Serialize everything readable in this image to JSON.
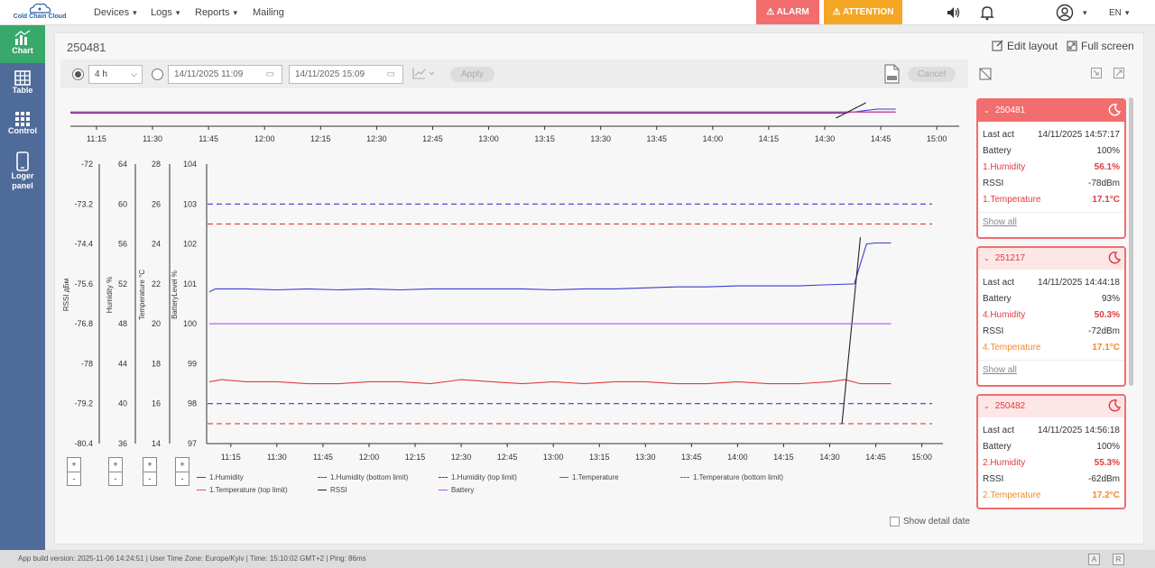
{
  "app": {
    "logo_text": "Cold Chain Cloud"
  },
  "nav": [
    {
      "label": "Devices",
      "dropdown": true
    },
    {
      "label": "Logs",
      "dropdown": true
    },
    {
      "label": "Reports",
      "dropdown": true
    },
    {
      "label": "Mailing",
      "dropdown": false
    }
  ],
  "alerts": {
    "alarm": "ALARM",
    "attention": "ATTENTION"
  },
  "lang": "EN",
  "sidebar": [
    {
      "label": "Chart",
      "icon": "chart-icon",
      "active": true
    },
    {
      "label": "Table",
      "icon": "table-icon",
      "active": false
    },
    {
      "label": "Control",
      "icon": "grid-icon",
      "active": false
    },
    {
      "label": "Loger panel",
      "icon": "phone-icon",
      "active": false
    }
  ],
  "panel": {
    "title": "250481",
    "edit_layout": "Edit layout",
    "full_screen": "Full screen"
  },
  "toolbar": {
    "period": "4 h",
    "date_from": "14/11/2025 11:09",
    "date_to": "14/11/2025 15:09",
    "apply": "Apply",
    "cancel": "Cancel"
  },
  "chart_data": {
    "type": "line",
    "x_ticks_overview": [
      "11:15",
      "11:30",
      "11:45",
      "12:00",
      "12:15",
      "12:30",
      "12:45",
      "13:00",
      "13:15",
      "13:30",
      "13:45",
      "14:00",
      "14:15",
      "14:30",
      "14:45",
      "15:00"
    ],
    "x_ticks_main": [
      "11:15",
      "11:30",
      "11:45",
      "12:00",
      "12:15",
      "12:30",
      "12:45",
      "13:00",
      "13:15",
      "13:30",
      "13:45",
      "14:00",
      "14:15",
      "14:30",
      "14:45",
      "15:00"
    ],
    "x_start_minutes": 668,
    "x_end_minutes": 906,
    "axes": [
      {
        "label": "RSSI дБм",
        "ticks": [
          "-72",
          "-73.2",
          "-74.4",
          "-75.6",
          "-76.8",
          "-78",
          "-79.2",
          "-80.4"
        ],
        "range": [
          -80.4,
          -72
        ]
      },
      {
        "label": "Humidity %",
        "ticks": [
          "64",
          "60",
          "56",
          "52",
          "48",
          "44",
          "40",
          "36"
        ],
        "range": [
          36,
          64
        ]
      },
      {
        "label": "Temperature °C",
        "ticks": [
          "28",
          "26",
          "24",
          "22",
          "20",
          "18",
          "16",
          "14"
        ],
        "range": [
          14,
          28
        ]
      },
      {
        "label": "BatteryLevel %",
        "ticks": [
          "104",
          "103",
          "102",
          "101",
          "100",
          "99",
          "98",
          "97"
        ],
        "range": [
          97,
          104
        ]
      }
    ],
    "series": [
      {
        "name": "1.Humidity",
        "color": "#3a3ad6",
        "style": "solid",
        "axis": 1,
        "x": [
          668,
          670,
          680,
          690,
          700,
          710,
          720,
          730,
          740,
          750,
          760,
          770,
          780,
          790,
          800,
          810,
          820,
          830,
          840,
          850,
          860,
          868,
          878,
          882,
          885,
          890
        ],
        "y": [
          51.2,
          51.5,
          51.5,
          51.4,
          51.5,
          51.4,
          51.5,
          51.4,
          51.5,
          51.5,
          51.5,
          51.5,
          51.4,
          51.5,
          51.5,
          51.6,
          51.7,
          51.7,
          51.8,
          51.8,
          51.8,
          51.9,
          52.0,
          56.0,
          56.1,
          56.1
        ]
      },
      {
        "name": "1.Humidity (bottom limit)",
        "color": "#3a3ad6",
        "style": "dashed",
        "axis": 1,
        "x": [
          668,
          906
        ],
        "y": [
          40,
          40
        ]
      },
      {
        "name": "1.Humidity (top limit)",
        "color": "#3a3ad6",
        "style": "dashed",
        "axis": 1,
        "x": [
          668,
          906
        ],
        "y": [
          60,
          60
        ]
      },
      {
        "name": "1.Temperature",
        "color": "#e03c3c",
        "style": "solid",
        "axis": 2,
        "x": [
          668,
          672,
          680,
          690,
          700,
          710,
          720,
          730,
          740,
          750,
          760,
          770,
          780,
          790,
          800,
          810,
          820,
          830,
          840,
          850,
          860,
          870,
          875,
          880,
          890
        ],
        "y": [
          17.1,
          17.2,
          17.1,
          17.1,
          17.0,
          17.0,
          17.1,
          17.1,
          17.0,
          17.2,
          17.1,
          17.0,
          17.1,
          17.0,
          17.1,
          17.1,
          17.0,
          17.0,
          17.1,
          17.0,
          17.0,
          17.1,
          17.2,
          17.0,
          17.0
        ]
      },
      {
        "name": "1.Temperature (bottom limit)",
        "color": "#e03c3c",
        "style": "dashed",
        "axis": 2,
        "x": [
          668,
          906
        ],
        "y": [
          15,
          15
        ]
      },
      {
        "name": "1.Temperature (top limit)",
        "color": "#e03c3c",
        "style": "dashed",
        "axis": 2,
        "x": [
          668,
          906
        ],
        "y": [
          25,
          25
        ]
      },
      {
        "name": "RSSI",
        "color": "#222222",
        "style": "solid",
        "axis": 0,
        "x": [
          874,
          880
        ],
        "y": [
          -79.8,
          -74.2
        ]
      },
      {
        "name": "Battery",
        "color": "#a855f7",
        "style": "solid",
        "axis": 3,
        "x": [
          668,
          890
        ],
        "y": [
          100,
          100
        ]
      }
    ],
    "grid": false,
    "legend_placement": "bottom"
  },
  "zoom": {
    "plus": "+",
    "minus": "-"
  },
  "show_detail_date": "Show detail date",
  "devices": [
    {
      "id": "250481",
      "last_act": "14/11/2025 14:57:17",
      "battery": "100%",
      "rows": [
        {
          "k": "Last act",
          "v": "14/11/2025 14:57:17",
          "state": ""
        },
        {
          "k": "Battery",
          "v": "100%",
          "state": ""
        },
        {
          "k": "1.Humidity",
          "v": "56.1%",
          "state": "alarm"
        },
        {
          "k": "RSSI",
          "v": "-78dBm",
          "state": ""
        },
        {
          "k": "1.Temperature",
          "v": "17.1°C",
          "state": "alarm"
        }
      ],
      "show_all": "Show all",
      "header_color": "#f26d6d"
    },
    {
      "id": "251217",
      "rows": [
        {
          "k": "Last act",
          "v": "14/11/2025 14:44:18",
          "state": ""
        },
        {
          "k": "Battery",
          "v": "93%",
          "state": ""
        },
        {
          "k": "4.Humidity",
          "v": "50.3%",
          "state": "alarm"
        },
        {
          "k": "RSSI",
          "v": "-72dBm",
          "state": ""
        },
        {
          "k": "4.Temperature",
          "v": "17.1°C",
          "state": "warn"
        }
      ],
      "show_all": "Show all",
      "header_color": "#fde6e6"
    },
    {
      "id": "250482",
      "rows": [
        {
          "k": "Last act",
          "v": "14/11/2025 14:56:18",
          "state": ""
        },
        {
          "k": "Battery",
          "v": "100%",
          "state": ""
        },
        {
          "k": "2.Humidity",
          "v": "55.3%",
          "state": "alarm"
        },
        {
          "k": "RSSI",
          "v": "-62dBm",
          "state": ""
        },
        {
          "k": "2.Temperature",
          "v": "17.2°C",
          "state": "warn"
        }
      ],
      "show_all": "",
      "header_color": "#fde6e6"
    }
  ],
  "footer": {
    "text": "App build version: 2025-11-06 14:24:51 | User Time Zone: Europe/Kyiv | Time: 15:10:02 GMT+2 | Ping: 86ms",
    "badge_a": "A",
    "badge_r": "R"
  }
}
